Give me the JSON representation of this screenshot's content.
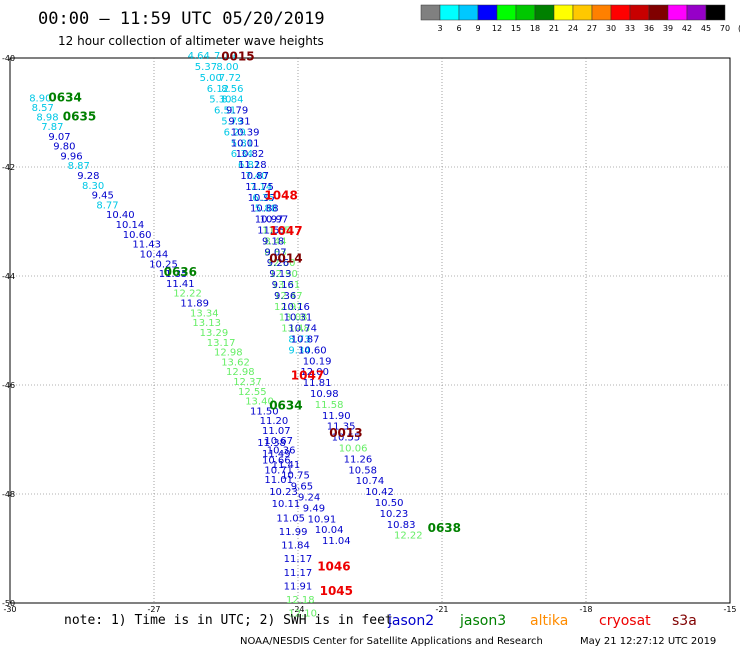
{
  "header": {
    "title": "00:00 – 11:59 UTC 05/20/2019",
    "subtitle": "12 hour collection of altimeter wave heights"
  },
  "colorbar": {
    "labels": [
      "3",
      "6",
      "9",
      "12",
      "15",
      "18",
      "21",
      "24",
      "27",
      "30",
      "33",
      "36",
      "39",
      "42",
      "45",
      "70",
      "(ft)"
    ],
    "colors": [
      "#808080",
      "#00ffff",
      "#00c8ff",
      "#0000ff",
      "#00ff00",
      "#00c800",
      "#008000",
      "#ffff00",
      "#ffc800",
      "#ff8000",
      "#ff0000",
      "#c80000",
      "#800000",
      "#ff00ff",
      "#9600c8",
      "#000000"
    ]
  },
  "axes": {
    "x_ticks": [
      "-30",
      "-27",
      "-24",
      "-21",
      "-18",
      "-15"
    ],
    "y_ticks": [
      "-40",
      "-42",
      "-44",
      "-46",
      "-48",
      "-50"
    ],
    "xlim": [
      -30,
      -15
    ],
    "ylim": [
      -50,
      -40
    ]
  },
  "satellite_colors": {
    "jason2": "#0000cc",
    "jason3": "#008000",
    "altika": "#ff8c00",
    "cryosat": "#ee0000",
    "s3a": "#800000"
  },
  "value_colors": {
    "lo": "#00c8e6",
    "mid": "#0000cc",
    "hi": "#66ee66"
  },
  "chart_data": {
    "type": "scatter",
    "x_unit": "longitude",
    "y_unit": "latitude",
    "grid": true,
    "pass_labels": [
      {
        "text": "0015",
        "sat": "s3a",
        "x": -25.6,
        "y": -40.05
      },
      {
        "text": "0634",
        "sat": "jason3",
        "x": -29.2,
        "y": -40.8
      },
      {
        "text": "0635",
        "sat": "jason3",
        "x": -28.9,
        "y": -41.15
      },
      {
        "text": "1048",
        "sat": "cryosat",
        "x": -24.7,
        "y": -42.6
      },
      {
        "text": "1047",
        "sat": "cryosat",
        "x": -24.6,
        "y": -43.25
      },
      {
        "text": "0014",
        "sat": "s3a",
        "x": -24.6,
        "y": -43.75
      },
      {
        "text": "0636",
        "sat": "jason3",
        "x": -26.8,
        "y": -44.0
      },
      {
        "text": "1047",
        "sat": "cryosat",
        "x": -24.15,
        "y": -45.9
      },
      {
        "text": "0634",
        "sat": "jason3",
        "x": -24.6,
        "y": -46.45
      },
      {
        "text": "0013",
        "sat": "s3a",
        "x": -23.35,
        "y": -46.95
      },
      {
        "text": "0638",
        "sat": "jason3",
        "x": -21.3,
        "y": -48.7
      },
      {
        "text": "1046",
        "sat": "cryosat",
        "x": -23.6,
        "y": -49.4
      },
      {
        "text": "1045",
        "sat": "cryosat",
        "x": -23.55,
        "y": -49.85
      }
    ],
    "tracks": [
      {
        "name": "track-a",
        "points": [
          {
            "x": -29.6,
            "y": -40.8,
            "v": "8.90",
            "c": "lo"
          },
          {
            "x": -29.55,
            "y": -40.97,
            "v": "8.57",
            "c": "lo"
          },
          {
            "x": -29.45,
            "y": -41.15,
            "v": "8.98",
            "c": "lo"
          },
          {
            "x": -29.35,
            "y": -41.32,
            "v": "7.87",
            "c": "lo"
          },
          {
            "x": -29.2,
            "y": -41.5,
            "v": "9.07",
            "c": "mid"
          },
          {
            "x": -29.1,
            "y": -41.68,
            "v": "9.80",
            "c": "mid"
          },
          {
            "x": -28.95,
            "y": -41.86,
            "v": "9.96",
            "c": "mid"
          },
          {
            "x": -28.8,
            "y": -42.04,
            "v": "8.87",
            "c": "lo"
          },
          {
            "x": -28.6,
            "y": -42.22,
            "v": "9.28",
            "c": "mid"
          },
          {
            "x": -28.5,
            "y": -42.4,
            "v": "8.30",
            "c": "lo"
          },
          {
            "x": -28.3,
            "y": -42.58,
            "v": "9.45",
            "c": "mid"
          },
          {
            "x": -28.2,
            "y": -42.76,
            "v": "8.77",
            "c": "lo"
          },
          {
            "x": -28.0,
            "y": -42.94,
            "v": "10.40",
            "c": "mid"
          },
          {
            "x": -27.8,
            "y": -43.12,
            "v": "10.14",
            "c": "mid"
          },
          {
            "x": -27.65,
            "y": -43.3,
            "v": "10.60",
            "c": "mid"
          },
          {
            "x": -27.45,
            "y": -43.48,
            "v": "11.43",
            "c": "mid"
          },
          {
            "x": -27.3,
            "y": -43.66,
            "v": "10.44",
            "c": "mid"
          },
          {
            "x": -27.1,
            "y": -43.84,
            "v": "10.25",
            "c": "mid"
          },
          {
            "x": -26.9,
            "y": -44.02,
            "v": "11.35",
            "c": "mid"
          },
          {
            "x": -26.75,
            "y": -44.2,
            "v": "11.41",
            "c": "mid"
          },
          {
            "x": -26.6,
            "y": -44.38,
            "v": "12.22",
            "c": "hi"
          },
          {
            "x": -26.45,
            "y": -44.56,
            "v": "11.89",
            "c": "mid"
          },
          {
            "x": -26.25,
            "y": -44.74,
            "v": "13.34",
            "c": "hi"
          },
          {
            "x": -26.2,
            "y": -44.92,
            "v": "13.13",
            "c": "hi"
          },
          {
            "x": -26.05,
            "y": -45.1,
            "v": "13.29",
            "c": "hi"
          },
          {
            "x": -25.9,
            "y": -45.28,
            "v": "13.17",
            "c": "hi"
          },
          {
            "x": -25.75,
            "y": -45.46,
            "v": "12.98",
            "c": "hi"
          },
          {
            "x": -25.6,
            "y": -45.64,
            "v": "13.62",
            "c": "hi"
          },
          {
            "x": -25.5,
            "y": -45.82,
            "v": "12.98",
            "c": "hi"
          },
          {
            "x": -25.35,
            "y": -46.0,
            "v": "12.37",
            "c": "hi"
          },
          {
            "x": -25.25,
            "y": -46.18,
            "v": "12.55",
            "c": "hi"
          },
          {
            "x": -25.1,
            "y": -46.36,
            "v": "13.40",
            "c": "hi"
          },
          {
            "x": -25.0,
            "y": -46.54,
            "v": "11.50",
            "c": "mid"
          },
          {
            "x": -24.8,
            "y": -46.72,
            "v": "11.20",
            "c": "mid"
          },
          {
            "x": -24.75,
            "y": -46.9,
            "v": "11.07",
            "c": "mid"
          },
          {
            "x": -24.7,
            "y": -47.08,
            "v": "10.67",
            "c": "mid"
          },
          {
            "x": -24.65,
            "y": -47.26,
            "v": "10.36",
            "c": "mid"
          },
          {
            "x": -24.75,
            "y": -47.44,
            "v": "10.66",
            "c": "mid"
          },
          {
            "x": -24.7,
            "y": -47.62,
            "v": "10.71",
            "c": "mid"
          },
          {
            "x": -24.7,
            "y": -47.8,
            "v": "11.01",
            "c": "mid"
          },
          {
            "x": -24.6,
            "y": -48.02,
            "v": "10.23",
            "c": "mid"
          },
          {
            "x": -24.55,
            "y": -48.24,
            "v": "10.11",
            "c": "mid"
          },
          {
            "x": -24.45,
            "y": -48.5,
            "v": "11.05",
            "c": "mid"
          },
          {
            "x": -24.4,
            "y": -48.75,
            "v": "11.99",
            "c": "mid"
          },
          {
            "x": -24.35,
            "y": -49.0,
            "v": "11.84",
            "c": "mid"
          },
          {
            "x": -24.3,
            "y": -49.25,
            "v": "11.17",
            "c": "mid"
          },
          {
            "x": -24.3,
            "y": -49.5,
            "v": "11.17",
            "c": "mid"
          },
          {
            "x": -24.3,
            "y": -49.75,
            "v": "11.91",
            "c": "mid"
          },
          {
            "x": -24.25,
            "y": -50.0,
            "v": "12.18",
            "c": "hi"
          },
          {
            "x": -24.2,
            "y": -50.25,
            "v": "12.10",
            "c": "hi"
          }
        ]
      },
      {
        "name": "track-b",
        "points": [
          {
            "x": -26.3,
            "y": -40.02,
            "v": "4.64",
            "c": "lo"
          },
          {
            "x": -26.15,
            "y": -40.22,
            "v": "5.37",
            "c": "lo"
          },
          {
            "x": -26.05,
            "y": -40.42,
            "v": "5.00",
            "c": "lo"
          },
          {
            "x": -25.9,
            "y": -40.62,
            "v": "6.12",
            "c": "lo"
          },
          {
            "x": -25.85,
            "y": -40.82,
            "v": "5.30",
            "c": "lo"
          },
          {
            "x": -25.75,
            "y": -41.02,
            "v": "6.51",
            "c": "lo"
          },
          {
            "x": -25.6,
            "y": -41.22,
            "v": "5.79",
            "c": "lo"
          },
          {
            "x": -25.55,
            "y": -41.42,
            "v": "6.29",
            "c": "lo"
          },
          {
            "x": -25.4,
            "y": -41.62,
            "v": "5.81",
            "c": "lo"
          },
          {
            "x": -25.4,
            "y": -41.82,
            "v": "6.34",
            "c": "lo"
          },
          {
            "x": -25.25,
            "y": -42.02,
            "v": "6.81",
            "c": "lo"
          },
          {
            "x": -25.1,
            "y": -42.22,
            "v": "7.40",
            "c": "lo"
          },
          {
            "x": -25.0,
            "y": -42.42,
            "v": "7.14",
            "c": "lo"
          },
          {
            "x": -24.95,
            "y": -42.62,
            "v": "6.35",
            "c": "lo"
          },
          {
            "x": -24.9,
            "y": -42.82,
            "v": "5.88",
            "c": "lo"
          },
          {
            "x": -24.8,
            "y": -43.02,
            "v": "10.97",
            "c": "mid"
          },
          {
            "x": -24.75,
            "y": -43.22,
            "v": "11.65",
            "c": "hi"
          },
          {
            "x": -24.7,
            "y": -43.42,
            "v": "8.44",
            "c": "hi"
          },
          {
            "x": -24.7,
            "y": -43.62,
            "v": "8.83",
            "c": "hi"
          },
          {
            "x": -24.65,
            "y": -43.82,
            "v": "12.50",
            "c": "hi"
          },
          {
            "x": -24.6,
            "y": -44.02,
            "v": "12.90",
            "c": "hi"
          },
          {
            "x": -24.55,
            "y": -44.22,
            "v": "13.31",
            "c": "hi"
          },
          {
            "x": -24.5,
            "y": -44.42,
            "v": "12.47",
            "c": "hi"
          },
          {
            "x": -24.5,
            "y": -44.62,
            "v": "12.97",
            "c": "hi"
          },
          {
            "x": -24.4,
            "y": -44.82,
            "v": "13.08",
            "c": "hi"
          },
          {
            "x": -24.35,
            "y": -45.02,
            "v": "13.48",
            "c": "hi"
          },
          {
            "x": -24.2,
            "y": -45.22,
            "v": "8.73",
            "c": "lo"
          },
          {
            "x": -24.2,
            "y": -45.42,
            "v": "9.34",
            "c": "lo"
          }
        ]
      },
      {
        "name": "track-c",
        "points": [
          {
            "x": -25.75,
            "y": -40.02,
            "v": "7.19",
            "c": "lo"
          },
          {
            "x": -25.7,
            "y": -40.22,
            "v": "8.00",
            "c": "lo"
          },
          {
            "x": -25.65,
            "y": -40.42,
            "v": "7.72",
            "c": "lo"
          },
          {
            "x": -25.6,
            "y": -40.62,
            "v": "8.56",
            "c": "lo"
          },
          {
            "x": -25.6,
            "y": -40.82,
            "v": "8.84",
            "c": "lo"
          },
          {
            "x": -25.5,
            "y": -41.02,
            "v": "9.79",
            "c": "mid"
          },
          {
            "x": -25.45,
            "y": -41.22,
            "v": "9.31",
            "c": "mid"
          },
          {
            "x": -25.4,
            "y": -41.42,
            "v": "10.39",
            "c": "mid"
          },
          {
            "x": -25.4,
            "y": -41.62,
            "v": "10.01",
            "c": "mid"
          },
          {
            "x": -25.3,
            "y": -41.82,
            "v": "10.82",
            "c": "mid"
          },
          {
            "x": -25.25,
            "y": -42.02,
            "v": "11.28",
            "c": "mid"
          },
          {
            "x": -25.2,
            "y": -42.22,
            "v": "10.87",
            "c": "mid"
          },
          {
            "x": -25.1,
            "y": -42.42,
            "v": "11.75",
            "c": "mid"
          },
          {
            "x": -25.05,
            "y": -42.62,
            "v": "10.97",
            "c": "mid"
          },
          {
            "x": -25.0,
            "y": -42.82,
            "v": "10.88",
            "c": "mid"
          },
          {
            "x": -24.9,
            "y": -43.02,
            "v": "10.97",
            "c": "mid"
          },
          {
            "x": -24.85,
            "y": -43.22,
            "v": "11.55",
            "c": "mid"
          },
          {
            "x": -24.75,
            "y": -43.42,
            "v": "9.18",
            "c": "mid"
          },
          {
            "x": -24.7,
            "y": -43.62,
            "v": "9.07",
            "c": "mid"
          },
          {
            "x": -24.65,
            "y": -43.82,
            "v": "9.26",
            "c": "mid"
          },
          {
            "x": -24.6,
            "y": -44.02,
            "v": "9.13",
            "c": "mid"
          },
          {
            "x": -24.55,
            "y": -44.22,
            "v": "9.16",
            "c": "mid"
          },
          {
            "x": -24.5,
            "y": -44.42,
            "v": "9.36",
            "c": "mid"
          },
          {
            "x": -24.35,
            "y": -44.62,
            "v": "10.16",
            "c": "mid"
          },
          {
            "x": -24.3,
            "y": -44.82,
            "v": "10.31",
            "c": "mid"
          },
          {
            "x": -24.2,
            "y": -45.02,
            "v": "10.74",
            "c": "mid"
          },
          {
            "x": -24.15,
            "y": -45.22,
            "v": "10.87",
            "c": "mid"
          },
          {
            "x": -24.0,
            "y": -45.42,
            "v": "10.60",
            "c": "mid"
          },
          {
            "x": -23.9,
            "y": -45.62,
            "v": "10.19",
            "c": "mid"
          },
          {
            "x": -23.95,
            "y": -45.82,
            "v": "12.00",
            "c": "mid"
          },
          {
            "x": -23.9,
            "y": -46.02,
            "v": "11.81",
            "c": "mid"
          },
          {
            "x": -23.75,
            "y": -46.22,
            "v": "10.98",
            "c": "mid"
          },
          {
            "x": -23.65,
            "y": -46.42,
            "v": "11.58",
            "c": "hi"
          },
          {
            "x": -23.5,
            "y": -46.62,
            "v": "11.90",
            "c": "mid"
          },
          {
            "x": -23.4,
            "y": -46.82,
            "v": "11.35",
            "c": "mid"
          },
          {
            "x": -23.3,
            "y": -47.02,
            "v": "10.55",
            "c": "mid"
          },
          {
            "x": -23.15,
            "y": -47.22,
            "v": "10.06",
            "c": "hi"
          },
          {
            "x": -23.05,
            "y": -47.42,
            "v": "11.26",
            "c": "mid"
          },
          {
            "x": -22.95,
            "y": -47.62,
            "v": "10.58",
            "c": "mid"
          },
          {
            "x": -22.8,
            "y": -47.82,
            "v": "10.74",
            "c": "mid"
          },
          {
            "x": -22.6,
            "y": -48.02,
            "v": "10.42",
            "c": "mid"
          },
          {
            "x": -22.4,
            "y": -48.22,
            "v": "10.50",
            "c": "mid"
          },
          {
            "x": -22.3,
            "y": -48.42,
            "v": "10.23",
            "c": "mid"
          },
          {
            "x": -22.15,
            "y": -48.62,
            "v": "10.83",
            "c": "mid"
          },
          {
            "x": -22.0,
            "y": -48.82,
            "v": "12.22",
            "c": "hi"
          }
        ]
      },
      {
        "name": "track-d",
        "points": [
          {
            "x": -24.85,
            "y": -47.12,
            "v": "11.38",
            "c": "mid"
          },
          {
            "x": -24.75,
            "y": -47.32,
            "v": "11.49",
            "c": "mid"
          },
          {
            "x": -24.55,
            "y": -47.52,
            "v": "11.41",
            "c": "mid"
          },
          {
            "x": -24.35,
            "y": -47.72,
            "v": "10.75",
            "c": "mid"
          },
          {
            "x": -24.15,
            "y": -47.92,
            "v": "9.65",
            "c": "mid"
          },
          {
            "x": -24.0,
            "y": -48.12,
            "v": "9.24",
            "c": "mid"
          },
          {
            "x": -23.9,
            "y": -48.32,
            "v": "9.49",
            "c": "mid"
          },
          {
            "x": -23.8,
            "y": -48.52,
            "v": "10.91",
            "c": "mid"
          },
          {
            "x": -23.65,
            "y": -48.72,
            "v": "10.04",
            "c": "mid"
          },
          {
            "x": -23.5,
            "y": -48.92,
            "v": "11.04",
            "c": "mid"
          }
        ]
      }
    ]
  },
  "footer": {
    "note": "note: 1) Time is in UTC; 2) SWH is in feet",
    "legend": [
      {
        "key": "jason2",
        "label": "jason2"
      },
      {
        "key": "jason3",
        "label": "jason3"
      },
      {
        "key": "altika",
        "label": "altika"
      },
      {
        "key": "cryosat",
        "label": "cryosat"
      },
      {
        "key": "s3a",
        "label": "s3a"
      }
    ],
    "credit": "NOAA/NESDIS Center for Satellite Applications and Research",
    "timestamp": "May 21 12:27:12 UTC 2019"
  }
}
